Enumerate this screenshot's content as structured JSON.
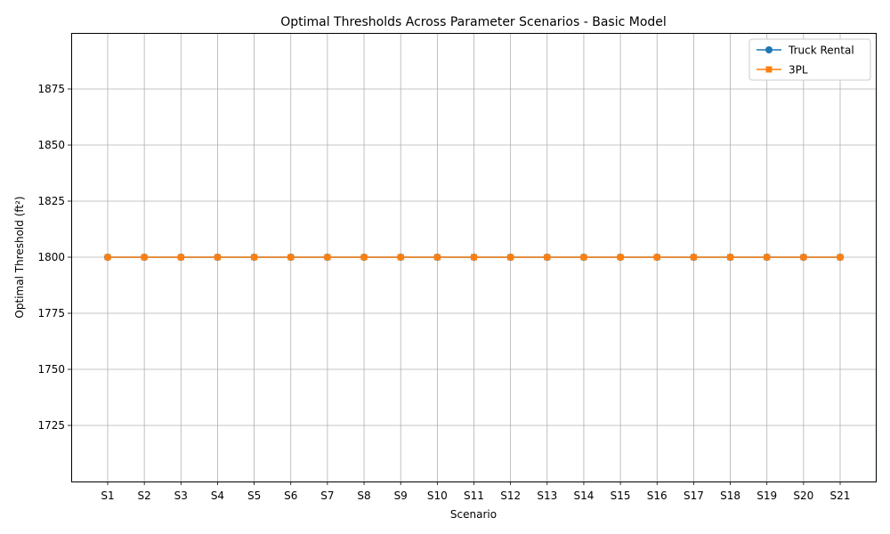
{
  "chart_data": {
    "type": "line",
    "title": "Optimal Thresholds Across Parameter Scenarios - Basic Model",
    "xlabel": "Scenario",
    "ylabel": "Optimal Threshold (ft²)",
    "categories": [
      "S1",
      "S2",
      "S3",
      "S4",
      "S5",
      "S6",
      "S7",
      "S8",
      "S9",
      "S10",
      "S11",
      "S12",
      "S13",
      "S14",
      "S15",
      "S16",
      "S17",
      "S18",
      "S19",
      "S20",
      "S21"
    ],
    "ylim": [
      1700,
      1900
    ],
    "yticks": [
      1725,
      1750,
      1775,
      1800,
      1825,
      1850,
      1875
    ],
    "grid": true,
    "legend_position": "top-right",
    "series": [
      {
        "name": "Truck Rental",
        "color": "#1f77b4",
        "marker": "circle",
        "values": [
          1800,
          1800,
          1800,
          1800,
          1800,
          1800,
          1800,
          1800,
          1800,
          1800,
          1800,
          1800,
          1800,
          1800,
          1800,
          1800,
          1800,
          1800,
          1800,
          1800,
          1800
        ]
      },
      {
        "name": "3PL",
        "color": "#ff7f0e",
        "marker": "square",
        "values": [
          1800,
          1800,
          1800,
          1800,
          1800,
          1800,
          1800,
          1800,
          1800,
          1800,
          1800,
          1800,
          1800,
          1800,
          1800,
          1800,
          1800,
          1800,
          1800,
          1800,
          1800
        ]
      }
    ]
  }
}
